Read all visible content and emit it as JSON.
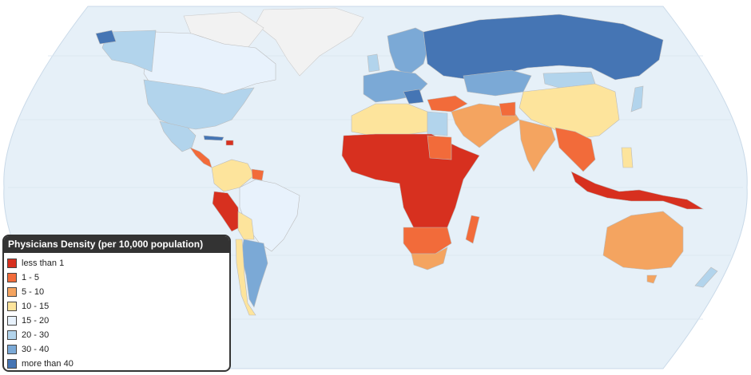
{
  "legend": {
    "title": "Physicians Density (per 10,000 population)",
    "items": [
      {
        "label": "less than 1",
        "color": "#d7301f"
      },
      {
        "label": "1 - 5",
        "color": "#f26b3a"
      },
      {
        "label": "5 - 10",
        "color": "#f4a460"
      },
      {
        "label": "10 - 15",
        "color": "#fde49c"
      },
      {
        "label": "15 - 20",
        "color": "#e8f2fc"
      },
      {
        "label": "20 - 30",
        "color": "#b2d4ec"
      },
      {
        "label": "30 - 40",
        "color": "#7ba9d6"
      },
      {
        "label": "more than 40",
        "color": "#4575b4"
      }
    ]
  },
  "colors": {
    "ocean": "#e6f0f8",
    "graticule": "#d4e2ee",
    "no_data": "#f2f2f2"
  }
}
